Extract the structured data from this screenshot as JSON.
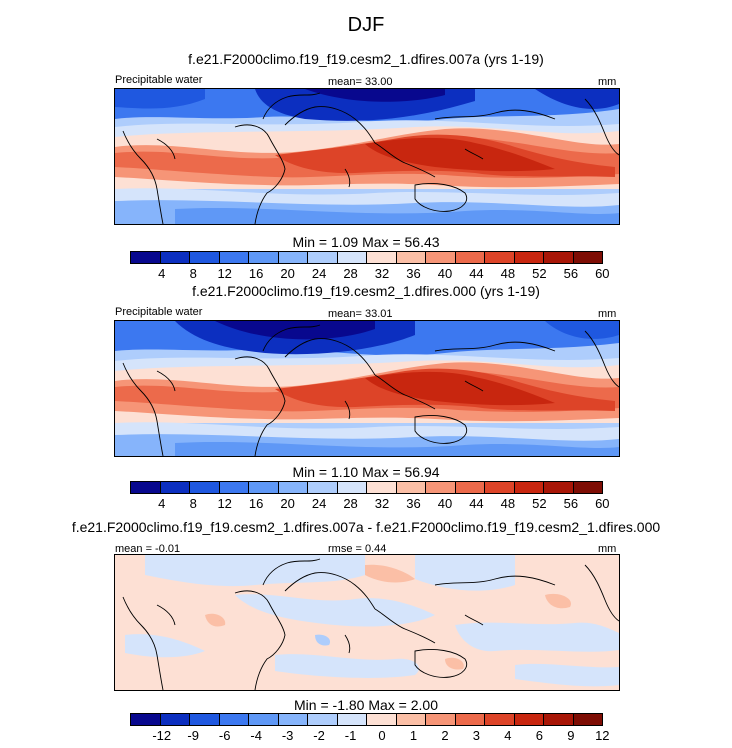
{
  "title": "DJF",
  "panel1": {
    "subtitle": "f.e21.F2000climo.f19_f19.cesm2_1.dfires.007a (yrs 1-19)",
    "var": "Precipitable water",
    "mean": "mean=  33.00",
    "units": "mm",
    "minmax": "Min =   1.09 Max =  56.43"
  },
  "panel2": {
    "subtitle": "f.e21.F2000climo.f19_f19.cesm2_1.dfires.000 (yrs 1-19)",
    "var": "Precipitable water",
    "mean": "mean=  33.01",
    "units": "mm",
    "minmax": "Min =   1.10 Max =  56.94"
  },
  "panel3": {
    "subtitle": "f.e21.F2000climo.f19_f19.cesm2_1.dfires.007a - f.e21.F2000climo.f19_f19.cesm2_1.dfires.000",
    "mean": "mean =  -0.01",
    "rmse": "rmse =   0.44",
    "units": "mm",
    "minmax": "Min =  -1.80 Max =   2.00"
  },
  "colorbar_abs": {
    "ticks": [
      "4",
      "8",
      "12",
      "16",
      "20",
      "24",
      "28",
      "32",
      "36",
      "40",
      "44",
      "48",
      "52",
      "56",
      "60"
    ],
    "colors": [
      "#08088e",
      "#0c2fc0",
      "#1f58e0",
      "#3c78f0",
      "#5f98f6",
      "#86b4fb",
      "#aecdfc",
      "#d5e4fb",
      "#fde0d4",
      "#fbbfa6",
      "#f69577",
      "#ec6a4b",
      "#dd4428",
      "#c8260f",
      "#a81607",
      "#7e0d04"
    ]
  },
  "colorbar_diff": {
    "ticks": [
      "-12",
      "-9",
      "-6",
      "-4",
      "-3",
      "-2",
      "-1",
      "0",
      "1",
      "2",
      "3",
      "4",
      "6",
      "9",
      "12"
    ],
    "colors": [
      "#08088e",
      "#0c2fc0",
      "#1f58e0",
      "#3c78f0",
      "#5f98f6",
      "#86b4fb",
      "#aecdfc",
      "#d5e4fb",
      "#fde0d4",
      "#fbbfa6",
      "#f69577",
      "#ec6a4b",
      "#dd4428",
      "#c8260f",
      "#a81607",
      "#7e0d04"
    ]
  }
}
